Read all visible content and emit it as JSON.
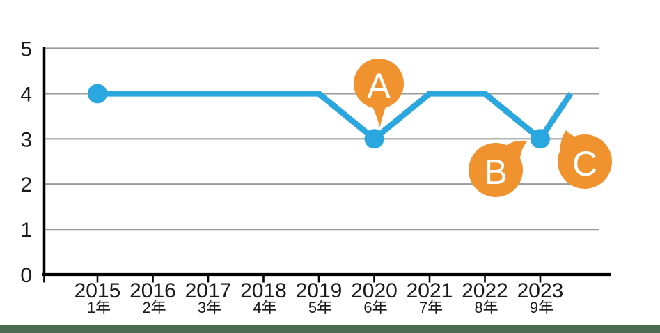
{
  "page": {
    "background_color": "#FFFFFF"
  },
  "footer": {
    "bar_color": "#4C6B52"
  },
  "chart_data": {
    "type": "line",
    "title": "",
    "xlabel": "",
    "ylabel": "",
    "categories": [
      "2015",
      "2016",
      "2017",
      "2018",
      "2019",
      "2020",
      "2021",
      "2022",
      "2023"
    ],
    "category_sub_labels": [
      "1年",
      "2年",
      "3年",
      "4年",
      "5年",
      "6年",
      "7年",
      "8年",
      "9年"
    ],
    "series": [
      {
        "name": "value-line",
        "color": "#2BA7DF",
        "values": [
          4,
          4,
          4,
          4,
          4,
          3,
          4,
          4,
          3
        ],
        "trailing_partial_point": {
          "value": 4,
          "x_offset_fraction": 0.55
        },
        "marker_category_indices": [
          0,
          5,
          8
        ]
      }
    ],
    "ylim": [
      0,
      5
    ],
    "yticks": [
      "0",
      "1",
      "2",
      "3",
      "4",
      "5"
    ],
    "grid": true,
    "grid_color": "#9A9A9A",
    "axis_color": "#000000",
    "tick_label_color": "#1A1A1A",
    "legend_position": "none",
    "callouts": {
      "bubble_color": "#F0922E",
      "text_color": "#FFFFFF",
      "items": [
        {
          "label": "A",
          "points_to": "2020 data point (value 3)"
        },
        {
          "label": "B",
          "points_to": "2023 data point (value 3)"
        },
        {
          "label": "C",
          "points_to": "line segment rising to 4 after 2023"
        }
      ]
    }
  }
}
